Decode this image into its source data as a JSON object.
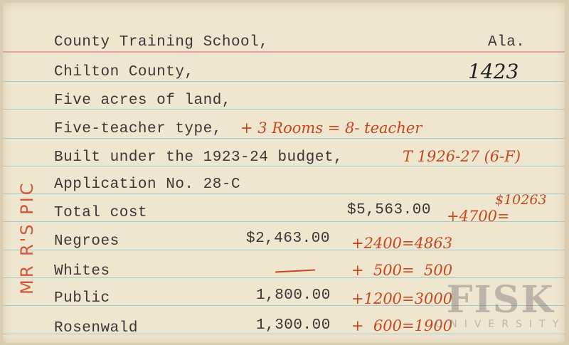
{
  "typed": {
    "line1": "County Training School,",
    "state": "Ala.",
    "line2": "Chilton County,",
    "line3": "Five acres of land,",
    "line4": "Five-teacher type,",
    "line5": "Built under the 1923-24 budget,",
    "line6": "Application No. 28-C",
    "total_label": "Total cost",
    "total_value": "$5,563.00",
    "negroes_label": "Negroes",
    "negroes_value": "$2,463.00",
    "whites_label": "Whites",
    "public_label": "Public",
    "public_value": "1,800.00",
    "rosenwald_label": "Rosenwald",
    "rosenwald_value": "1,300.00"
  },
  "handwritten": {
    "card_number": "1423",
    "side_note": "MR R'S PIC",
    "rooms_note": "+ 3 Rooms = 8- teacher",
    "budget_note": "T 1926-27 (6-F)",
    "total_sum": "$10263",
    "total_add": "+4700=",
    "negroes_add": "+2400=4863",
    "whites_add": "+  500=  500",
    "public_add": "+1200=3000",
    "rosenwald_add": "+  600=1900"
  },
  "watermark": {
    "name": "FISK",
    "sub": "UNIVERSITY"
  },
  "colors": {
    "card": "#efe6cf",
    "ink_typed": "#3b3733",
    "ink_red": "#c9461e",
    "rule_blue": "#a9c6c9",
    "rule_red": "#e7a3a0"
  }
}
